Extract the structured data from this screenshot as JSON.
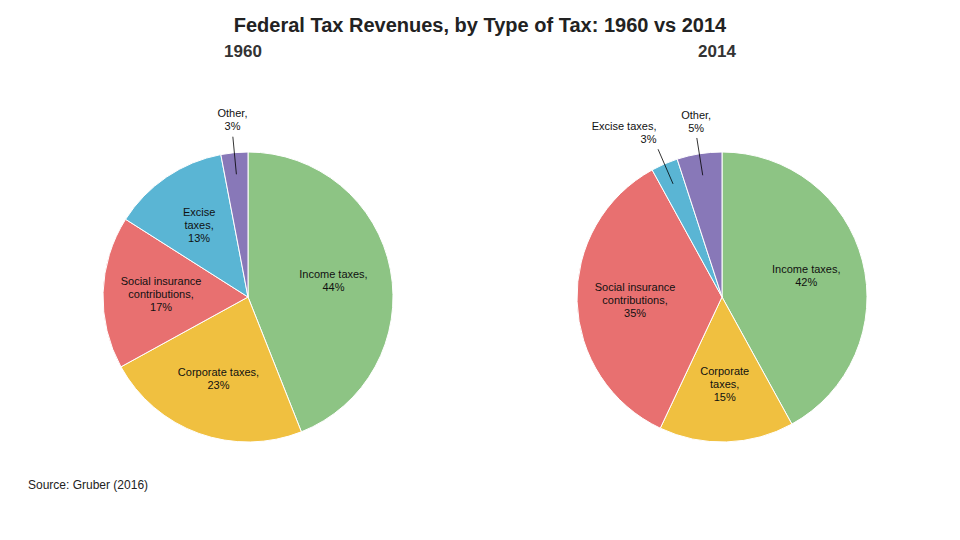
{
  "title": "Federal Tax Revenues, by Type of Tax: 1960 vs 2014",
  "annotations": [
    "Source: Gruber (2016)"
  ],
  "chart_data": [
    {
      "type": "pie",
      "title": "1960",
      "values": [
        44,
        23,
        17,
        13,
        3
      ],
      "value_labels": [
        "Income taxes,\n44%",
        "Corporate taxes,\n23%",
        "Social insurance\ncontributions,\n17%",
        "Excise\ntaxes,\n13%",
        "Other,\n3%"
      ],
      "colors": [
        "#8dc484",
        "#f0c040",
        "#e87070",
        "#5ab5d4",
        "#8878b8"
      ],
      "data_labels": true
    },
    {
      "type": "pie",
      "title": "2014",
      "values": [
        42,
        15,
        35,
        3,
        5
      ],
      "value_labels": [
        "Income taxes,\n42%",
        "Corporate\ntaxes,\n15%",
        "Social insurance\ncontributions,\n35%",
        "Excise taxes,\n3%",
        "Other,\n5%"
      ],
      "colors": [
        "#8dc484",
        "#f0c040",
        "#e87070",
        "#5ab5d4",
        "#8878b8"
      ],
      "data_labels": true
    }
  ]
}
